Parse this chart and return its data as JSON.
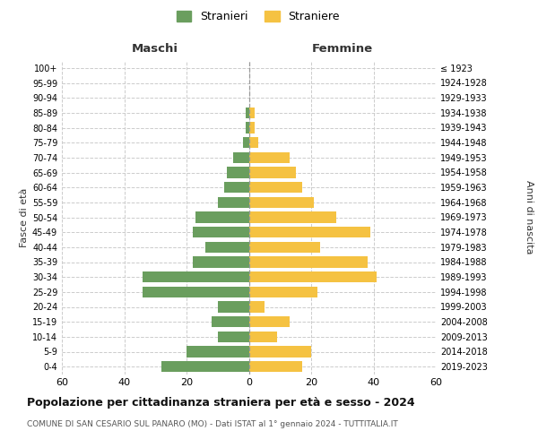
{
  "age_groups": [
    "0-4",
    "5-9",
    "10-14",
    "15-19",
    "20-24",
    "25-29",
    "30-34",
    "35-39",
    "40-44",
    "45-49",
    "50-54",
    "55-59",
    "60-64",
    "65-69",
    "70-74",
    "75-79",
    "80-84",
    "85-89",
    "90-94",
    "95-99",
    "100+"
  ],
  "birth_years": [
    "2019-2023",
    "2014-2018",
    "2009-2013",
    "2004-2008",
    "1999-2003",
    "1994-1998",
    "1989-1993",
    "1984-1988",
    "1979-1983",
    "1974-1978",
    "1969-1973",
    "1964-1968",
    "1959-1963",
    "1954-1958",
    "1949-1953",
    "1944-1948",
    "1939-1943",
    "1934-1938",
    "1929-1933",
    "1924-1928",
    "≤ 1923"
  ],
  "maschi": [
    28,
    20,
    10,
    12,
    10,
    34,
    34,
    18,
    14,
    18,
    17,
    10,
    8,
    7,
    5,
    2,
    1,
    1,
    0,
    0,
    0
  ],
  "femmine": [
    17,
    20,
    9,
    13,
    5,
    22,
    41,
    38,
    23,
    39,
    28,
    21,
    17,
    15,
    13,
    3,
    2,
    2,
    0,
    0,
    0
  ],
  "male_color": "#6a9e5e",
  "female_color": "#f5c242",
  "grid_color": "#cccccc",
  "bg_color": "#ffffff",
  "xlim": 60,
  "title": "Popolazione per cittadinanza straniera per età e sesso - 2024",
  "subtitle": "COMUNE DI SAN CESARIO SUL PANARO (MO) - Dati ISTAT al 1° gennaio 2024 - TUTTITALIA.IT",
  "ylabel_left": "Fasce di età",
  "ylabel_right": "Anni di nascita",
  "xlabel_maschi": "Maschi",
  "xlabel_femmine": "Femmine",
  "legend_maschi": "Stranieri",
  "legend_femmine": "Straniere"
}
